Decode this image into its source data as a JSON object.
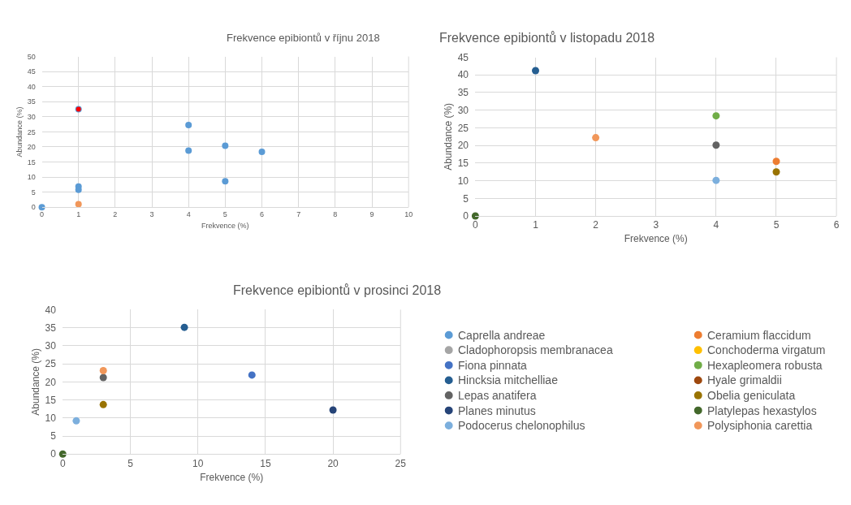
{
  "chart_data": [
    {
      "type": "scatter",
      "title": "Frekvence epibiontů v říjnu 2018",
      "xlabel": "Frekvence (%)",
      "ylabel": "Abundance (%)",
      "xlim": [
        0,
        10
      ],
      "xticks": [
        0,
        1,
        2,
        3,
        4,
        5,
        6,
        7,
        8,
        9,
        10
      ],
      "ylim": [
        0,
        50
      ],
      "yticks": [
        0,
        5,
        10,
        15,
        20,
        25,
        30,
        35,
        40,
        45,
        50
      ],
      "grid": true,
      "marker": "circle",
      "legend": false,
      "series": [
        {
          "color": "#5b9bd5",
          "x": [
            0,
            1,
            1,
            1,
            4,
            4,
            5,
            5,
            6
          ],
          "values": [
            0,
            32.5,
            6.9,
            5.8,
            27.3,
            18.8,
            20.4,
            8.6,
            18.4
          ]
        },
        {
          "color": "#ff0000",
          "x": [
            1
          ],
          "values": [
            32.5
          ]
        },
        {
          "color": "#f1975a",
          "x": [
            1
          ],
          "values": [
            1.0
          ]
        }
      ]
    },
    {
      "type": "scatter",
      "title": "Frekvence epibiontů v listopadu 2018",
      "xlabel": "Frekvence (%)",
      "ylabel": "Abundance (%)",
      "xlim": [
        0,
        6
      ],
      "xticks": [
        0,
        1,
        2,
        3,
        4,
        5,
        6
      ],
      "ylim": [
        0,
        45
      ],
      "yticks": [
        0,
        5,
        10,
        15,
        20,
        25,
        30,
        35,
        40,
        45
      ],
      "grid": true,
      "marker": "circle",
      "legend": false,
      "series": [
        {
          "color": "#ed7d31",
          "x": [
            5
          ],
          "values": [
            15.5
          ]
        },
        {
          "color": "#70ad47",
          "x": [
            4
          ],
          "values": [
            28.4
          ]
        },
        {
          "color": "#255e91",
          "x": [
            1
          ],
          "values": [
            41.2
          ]
        },
        {
          "color": "#636363",
          "x": [
            4
          ],
          "values": [
            20.1
          ]
        },
        {
          "color": "#997300",
          "x": [
            5
          ],
          "values": [
            12.5
          ]
        },
        {
          "color": "#43682b",
          "x": [
            0
          ],
          "values": [
            0
          ]
        },
        {
          "color": "#7cafdd",
          "x": [
            4
          ],
          "values": [
            10.1
          ]
        },
        {
          "color": "#f1975a",
          "x": [
            2
          ],
          "values": [
            22.2
          ]
        }
      ]
    },
    {
      "type": "scatter",
      "title": "Frekvence epibiontů v prosinci 2018",
      "xlabel": "Frekvence (%)",
      "ylabel": "Abundance (%)",
      "xlim": [
        0,
        25
      ],
      "xticks": [
        0,
        5,
        10,
        15,
        20,
        25
      ],
      "ylim": [
        0,
        40
      ],
      "yticks": [
        0,
        5,
        10,
        15,
        20,
        25,
        30,
        35,
        40
      ],
      "grid": true,
      "marker": "circle",
      "legend": "right",
      "series": [
        {
          "name": "Caprella andreae",
          "color": "#5b9bd5"
        },
        {
          "name": "Ceramium flaccidum",
          "color": "#ed7d31"
        },
        {
          "name": "Cladophoropsis membranacea",
          "color": "#a5a5a5"
        },
        {
          "name": "Conchoderma virgatum",
          "color": "#ffc000"
        },
        {
          "name": "Fiona pinnata",
          "color": "#4472c4",
          "x": [
            14
          ],
          "values": [
            21.9
          ]
        },
        {
          "name": "Hexapleomera robusta",
          "color": "#70ad47"
        },
        {
          "name": "Hincksia mitchelliae",
          "color": "#255e91",
          "x": [
            9
          ],
          "values": [
            35.1
          ]
        },
        {
          "name": "Hyale grimaldii",
          "color": "#9e480e"
        },
        {
          "name": "Lepas anatifera",
          "color": "#636363",
          "x": [
            3
          ],
          "values": [
            21.2
          ]
        },
        {
          "name": "Obelia geniculata",
          "color": "#997300",
          "x": [
            3
          ],
          "values": [
            13.7
          ]
        },
        {
          "name": "Planes minutus",
          "color": "#264478",
          "x": [
            20
          ],
          "values": [
            12.2
          ]
        },
        {
          "name": "Platylepas hexastylos",
          "color": "#43682b",
          "x": [
            0
          ],
          "values": [
            0
          ]
        },
        {
          "name": "Podocerus chelonophilus",
          "color": "#7cafdd",
          "x": [
            1
          ],
          "values": [
            9.2
          ]
        },
        {
          "name": "Polysiphonia carettia",
          "color": "#f1975a",
          "x": [
            3
          ],
          "values": [
            23.1
          ]
        }
      ]
    }
  ]
}
